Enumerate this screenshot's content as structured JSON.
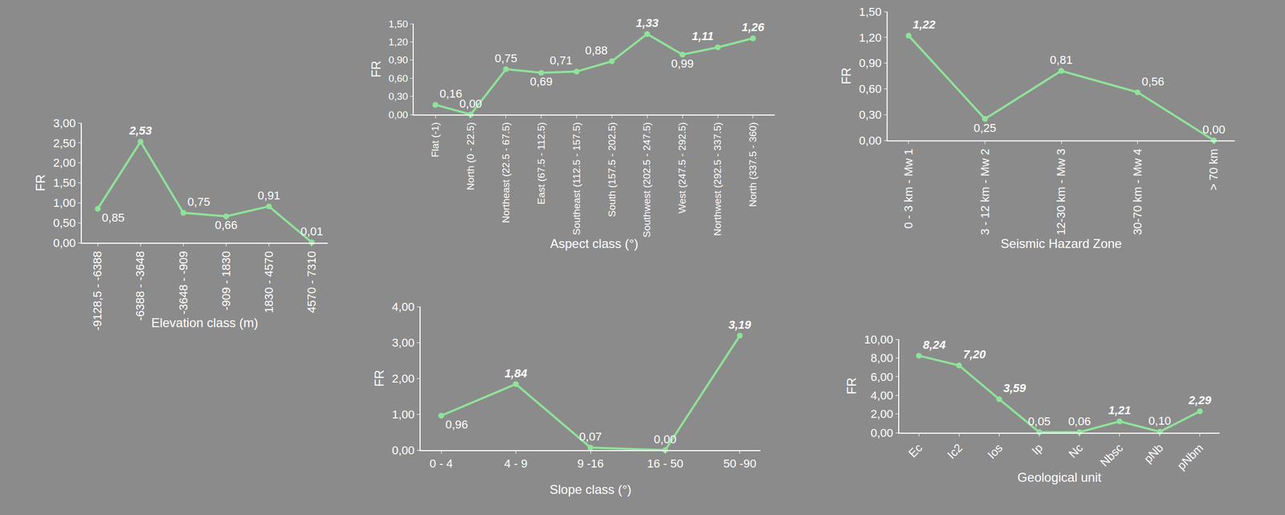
{
  "chart_data": [
    {
      "type": "line",
      "xlabel": "Elevation class (m)",
      "ylabel": "FR",
      "categories": [
        "-9128,5 - -6388",
        "-6388 - -3648",
        "-3648 - -909",
        "-909 - 1830",
        "1830 - 4570",
        "4570 - 7310"
      ],
      "values": [
        0.85,
        2.53,
        0.75,
        0.66,
        0.91,
        0.01
      ],
      "value_labels": [
        "0,85",
        "2,53",
        "0,75",
        "0,66",
        "0,91",
        "0,01"
      ],
      "ylim": [
        0,
        3
      ],
      "yticks": [
        {
          "value": 0,
          "label": "0,00"
        },
        {
          "value": 0.5,
          "label": "0,50"
        },
        {
          "value": 1,
          "label": "1,00"
        },
        {
          "value": 1.5,
          "label": "1,50"
        },
        {
          "value": 2,
          "label": "2,00"
        },
        {
          "value": 2.5,
          "label": "2,50"
        },
        {
          "value": 3,
          "label": "3,00"
        }
      ],
      "color": "#8fe39a",
      "marker": "circle",
      "data_labels": true,
      "grid": false
    },
    {
      "type": "line",
      "xlabel": "Aspect class (°)",
      "ylabel": "FR",
      "categories": [
        "Flat (-1)",
        "North (0 - 22.5)",
        "Northeast (22.5 - 67.5)",
        "East (67.5 - 112.5)",
        "Southeast (112.5 - 157.5)",
        "South (157.5 - 202.5)",
        "Southwest (202.5 - 247.5)",
        "West (247.5 - 292.5)",
        "Northwest (292.5 - 337.5)",
        "North (337.5 - 360)"
      ],
      "values": [
        0.16,
        0.0,
        0.75,
        0.69,
        0.71,
        0.88,
        1.33,
        0.99,
        1.11,
        1.26
      ],
      "value_labels": [
        "0,16",
        "0,00",
        "0,75",
        "0,69",
        "0,71",
        "0,88",
        "1,33",
        "0,99",
        "1,11",
        "1,26"
      ],
      "ylim": [
        0,
        1.5
      ],
      "yticks": [
        {
          "value": 0,
          "label": "0,00"
        },
        {
          "value": 0.3,
          "label": "0,30"
        },
        {
          "value": 0.6,
          "label": "0,60"
        },
        {
          "value": 0.9,
          "label": "0,90"
        },
        {
          "value": 1.2,
          "label": "1,20"
        },
        {
          "value": 1.5,
          "label": "1,50"
        }
      ],
      "color": "#8fe39a",
      "marker": "circle",
      "data_labels": true,
      "grid": false
    },
    {
      "type": "line",
      "xlabel": "Seismic Hazard Zone",
      "ylabel": "FR",
      "categories": [
        "0 - 3 km - Mw 1",
        "3 - 12 km - Mw 2",
        "12-30 km - Mw 3",
        "30-70 km - Mw 4",
        "> 70 km"
      ],
      "values": [
        1.22,
        0.25,
        0.81,
        0.56,
        0.0
      ],
      "value_labels": [
        "1,22",
        "0,25",
        "0,81",
        "0,56",
        "0,00"
      ],
      "ylim": [
        0,
        1.5
      ],
      "yticks": [
        {
          "value": 0,
          "label": "0,00"
        },
        {
          "value": 0.3,
          "label": "0,30"
        },
        {
          "value": 0.6,
          "label": "0,60"
        },
        {
          "value": 0.9,
          "label": "0,90"
        },
        {
          "value": 1.2,
          "label": "1,20"
        },
        {
          "value": 1.5,
          "label": "1,50"
        }
      ],
      "color": "#8fe39a",
      "marker": "circle",
      "data_labels": true,
      "grid": false
    },
    {
      "type": "line",
      "xlabel": "Slope class (°)",
      "ylabel": "FR",
      "categories": [
        "0 - 4",
        "4 - 9",
        "9 -16",
        "16 - 50",
        "50 -90"
      ],
      "values": [
        0.96,
        1.84,
        0.07,
        0.0,
        3.19
      ],
      "value_labels": [
        "0,96",
        "1,84",
        "0,07",
        "0,00",
        "3,19"
      ],
      "ylim": [
        0,
        4
      ],
      "yticks": [
        {
          "value": 0,
          "label": "0,00"
        },
        {
          "value": 1,
          "label": "1,00"
        },
        {
          "value": 2,
          "label": "2,00"
        },
        {
          "value": 3,
          "label": "3,00"
        },
        {
          "value": 4,
          "label": "4,00"
        }
      ],
      "color": "#8fe39a",
      "marker": "circle",
      "data_labels": true,
      "grid": false
    },
    {
      "type": "line",
      "xlabel": "Geological unit",
      "ylabel": "FR",
      "categories": [
        "Ec",
        "Ic2",
        "Ios",
        "Ip",
        "Nc",
        "Nbsc",
        "pNb",
        "pNbm"
      ],
      "values": [
        8.24,
        7.2,
        3.59,
        0.05,
        0.06,
        1.21,
        0.1,
        2.29
      ],
      "value_labels": [
        "8,24",
        "7,20",
        "3,59",
        "0,05",
        "0,06",
        "1,21",
        "0,10",
        "2,29"
      ],
      "ylim": [
        0,
        10
      ],
      "yticks": [
        {
          "value": 0,
          "label": "0,00"
        },
        {
          "value": 2,
          "label": "2,00"
        },
        {
          "value": 4,
          "label": "4,00"
        },
        {
          "value": 6,
          "label": "6,00"
        },
        {
          "value": 8,
          "label": "8,00"
        },
        {
          "value": 10,
          "label": "10,00"
        }
      ],
      "color": "#8fe39a",
      "marker": "circle",
      "data_labels": true,
      "grid": false
    }
  ]
}
